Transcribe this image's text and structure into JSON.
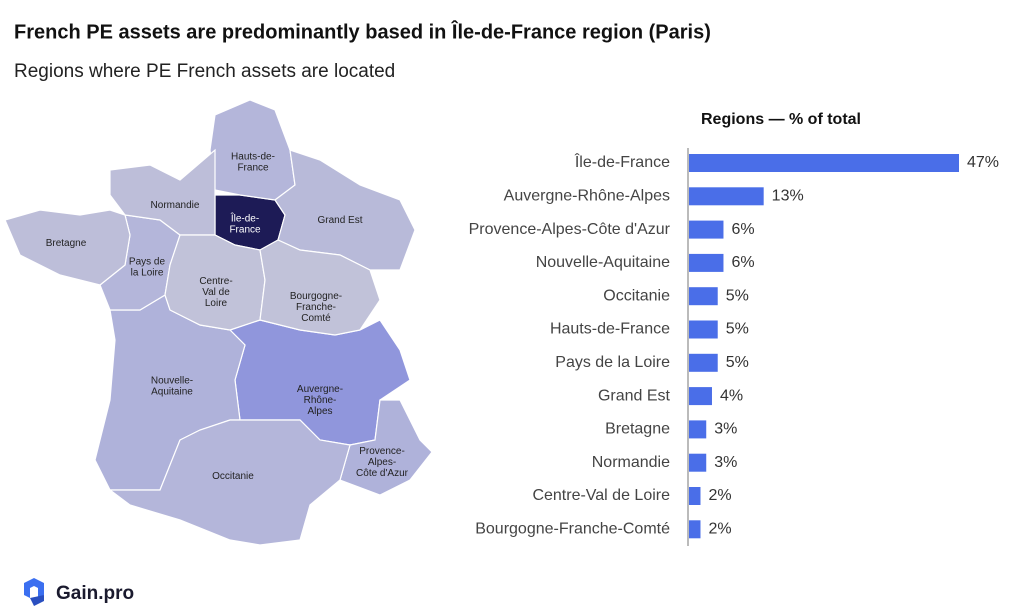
{
  "header": {
    "title": "French PE assets are predominantly based in Île-de-France region (Paris)",
    "subtitle": "Regions where PE French assets are located"
  },
  "footer": {
    "brand": "Gain.pro"
  },
  "chart_data": [
    {
      "type": "map",
      "categories": [
        [
          "Île-de-",
          "France"
        ],
        [
          "Auvergne-",
          "Rhône-",
          "Alpes"
        ],
        [
          "Provence-",
          "Alpes-",
          "Côte d'Azur"
        ],
        [
          "Nouvelle-",
          "Aquitaine"
        ],
        [
          "Occitanie"
        ],
        [
          "Hauts-de-",
          "France"
        ],
        [
          "Pays de",
          "la Loire"
        ],
        [
          "Grand Est"
        ],
        [
          "Bretagne"
        ],
        [
          "Normandie"
        ],
        [
          "Centre-",
          "Val de",
          "Loire"
        ],
        [
          "Bourgogne-",
          "Franche-",
          "Comté"
        ]
      ]
    },
    {
      "type": "bar",
      "title": "Regions — % of total",
      "color": "#4a6ee8",
      "categories": [
        "Île-de-France",
        "Auvergne-Rhône-Alpes",
        "Provence-Alpes-Côte d'Azur",
        "Nouvelle-Aquitaine",
        "Occitanie",
        "Hauts-de-France",
        "Pays de la Loire",
        "Grand Est",
        "Bretagne",
        "Normandie",
        "Centre-Val de Loire",
        "Bourgogne-Franche-Comté"
      ],
      "values": [
        47,
        13,
        6,
        6,
        5,
        5,
        5,
        4,
        3,
        3,
        2,
        2
      ],
      "value_labels": [
        "47%",
        "13%",
        "6%",
        "6%",
        "5%",
        "5%",
        "5%",
        "4%",
        "3%",
        "3%",
        "2%",
        "2%"
      ]
    }
  ]
}
